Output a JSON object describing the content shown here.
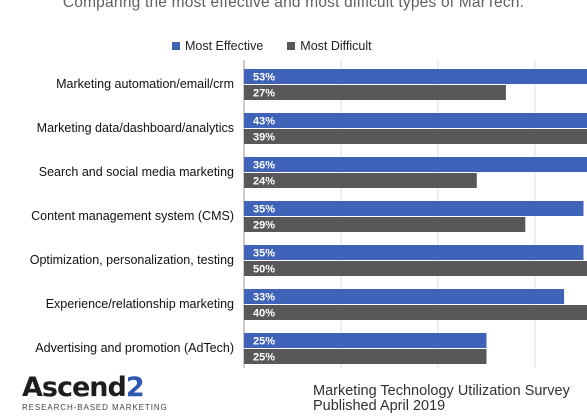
{
  "subtitle": "Comparing the most effective and most difficult types of MarTech.",
  "legend": [
    {
      "label": "Most Effective",
      "color": "#3e63b8"
    },
    {
      "label": "Most Difficult",
      "color": "#58585a"
    }
  ],
  "footer": {
    "logo_text": "Ascend",
    "logo_number": "2",
    "logo_tagline": "RESEARCH-BASED MARKETING",
    "source_line1": "Marketing Technology Utilization Survey",
    "source_line2": "Published April 2019"
  },
  "chart_data": {
    "type": "bar",
    "orientation": "horizontal",
    "title": "",
    "xlabel": "",
    "ylabel": "",
    "xlim": [
      0,
      60
    ],
    "grid": true,
    "legend_position": "top",
    "categories": [
      "Marketing automation/email/crm",
      "Marketing data/dashboard/analytics",
      "Search and social media marketing",
      "Content management system (CMS)",
      "Optimization, personalization, testing",
      "Experience/relationship marketing",
      "Advertising and promotion (AdTech)"
    ],
    "series": [
      {
        "name": "Most Effective",
        "color": "#3e63b8",
        "values": [
          53,
          43,
          36,
          35,
          35,
          33,
          25
        ]
      },
      {
        "name": "Most Difficult",
        "color": "#58585a",
        "values": [
          27,
          39,
          24,
          29,
          50,
          40,
          25
        ]
      }
    ],
    "value_suffix": "%"
  }
}
